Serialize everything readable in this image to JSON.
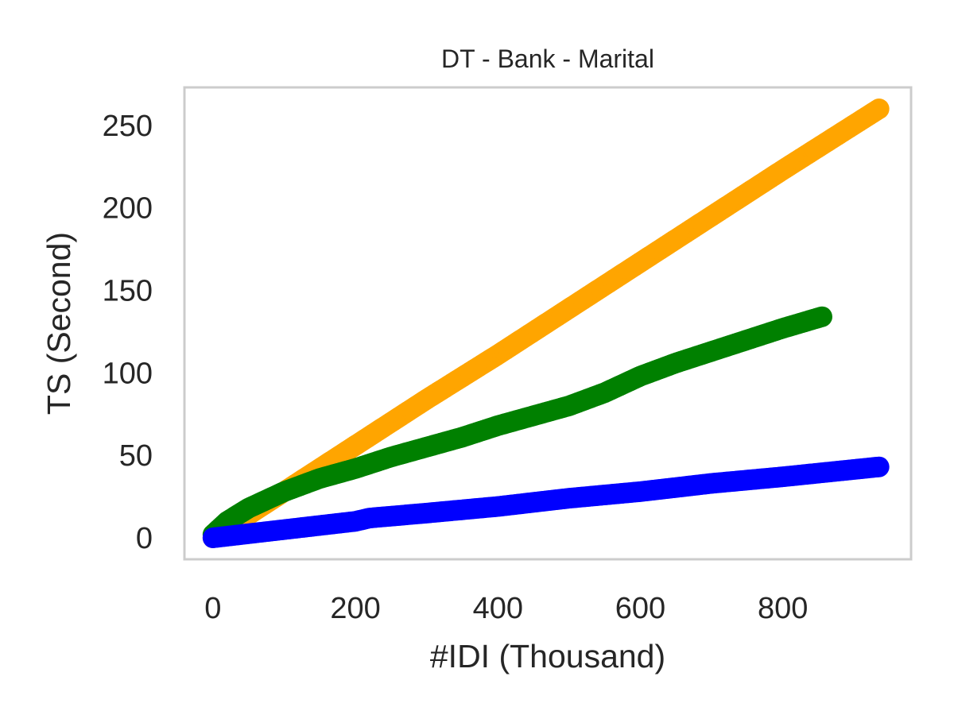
{
  "chart_data": {
    "type": "scatter",
    "title": "DT - Bank - Marital",
    "xlabel": "#IDI (Thousand)",
    "ylabel": "TS (Second)",
    "xlim": [
      -40,
      980
    ],
    "ylim": [
      -13,
      273
    ],
    "xticks": [
      0,
      200,
      400,
      600,
      800
    ],
    "yticks": [
      0,
      50,
      100,
      150,
      200,
      250
    ],
    "grid": false,
    "legend": "none",
    "series": [
      {
        "color": "#ffa500",
        "x": [
          0,
          50,
          100,
          200,
          300,
          400,
          500,
          600,
          700,
          800,
          935
        ],
        "y": [
          0,
          14,
          28,
          56,
          84,
          111,
          139,
          167,
          195,
          223,
          260
        ]
      },
      {
        "color": "#008000",
        "x": [
          0,
          20,
          50,
          100,
          150,
          200,
          250,
          300,
          350,
          400,
          450,
          500,
          550,
          600,
          650,
          700,
          750,
          800,
          855
        ],
        "y": [
          2,
          10,
          18,
          28,
          36,
          42,
          49,
          55,
          61,
          68,
          74,
          80,
          88,
          98,
          106,
          113,
          120,
          127,
          134
        ]
      },
      {
        "color": "#0000ff",
        "x": [
          0,
          100,
          200,
          220,
          300,
          400,
          500,
          600,
          700,
          800,
          935
        ],
        "y": [
          0,
          5,
          10,
          12,
          15,
          19,
          24,
          28,
          33,
          37,
          43
        ]
      }
    ]
  }
}
